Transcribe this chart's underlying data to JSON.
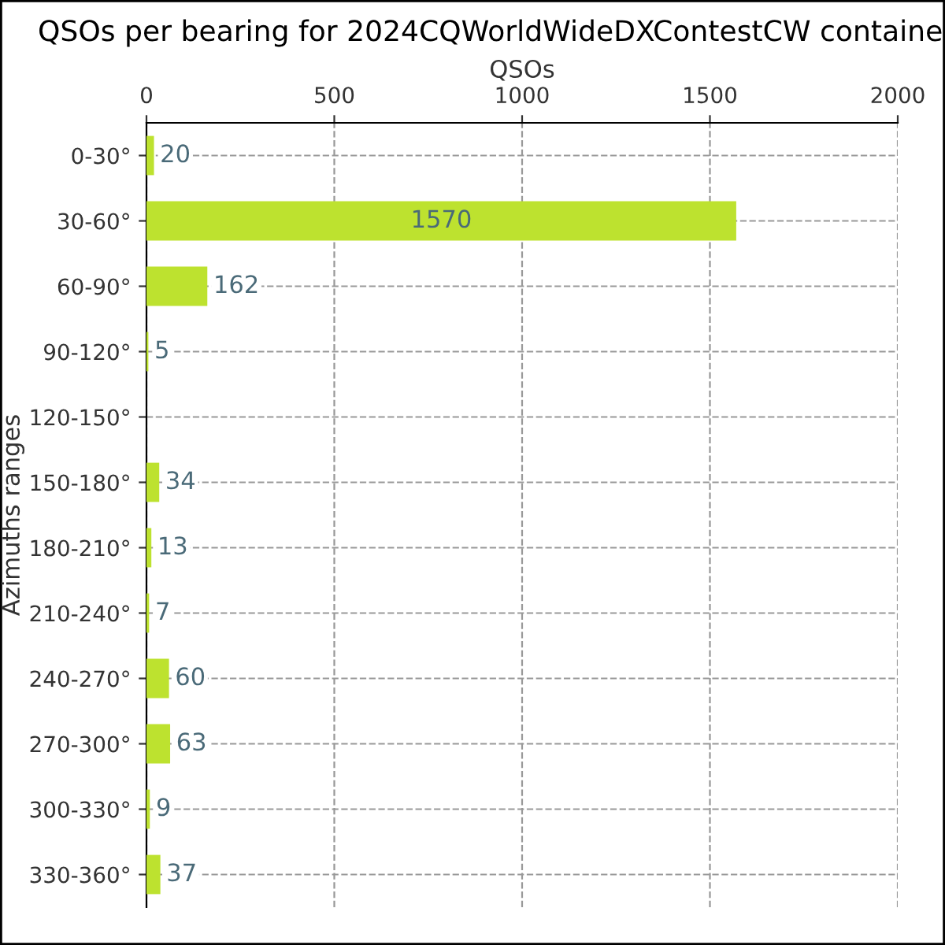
{
  "chart_data": {
    "type": "bar",
    "orientation": "horizontal",
    "title": "QSOs per bearing for 2024CQWorldWideDXContestCW containe",
    "xlabel": "QSOs",
    "ylabel": "Azimuths ranges",
    "categories": [
      "0-30°",
      "30-60°",
      "60-90°",
      "90-120°",
      "120-150°",
      "150-180°",
      "180-210°",
      "210-240°",
      "240-270°",
      "270-300°",
      "300-330°",
      "330-360°"
    ],
    "values": [
      20,
      1570,
      162,
      5,
      0,
      34,
      13,
      7,
      60,
      63,
      9,
      37
    ],
    "value_labels": [
      "20",
      "1570",
      "162",
      "5",
      null,
      "34",
      "13",
      "7",
      "60",
      "63",
      "9",
      "37"
    ],
    "color": "#bde22f",
    "xlim": [
      0,
      2000
    ],
    "xticks": [
      0,
      500,
      1000,
      1500,
      2000
    ],
    "grid": true,
    "legend": false
  }
}
